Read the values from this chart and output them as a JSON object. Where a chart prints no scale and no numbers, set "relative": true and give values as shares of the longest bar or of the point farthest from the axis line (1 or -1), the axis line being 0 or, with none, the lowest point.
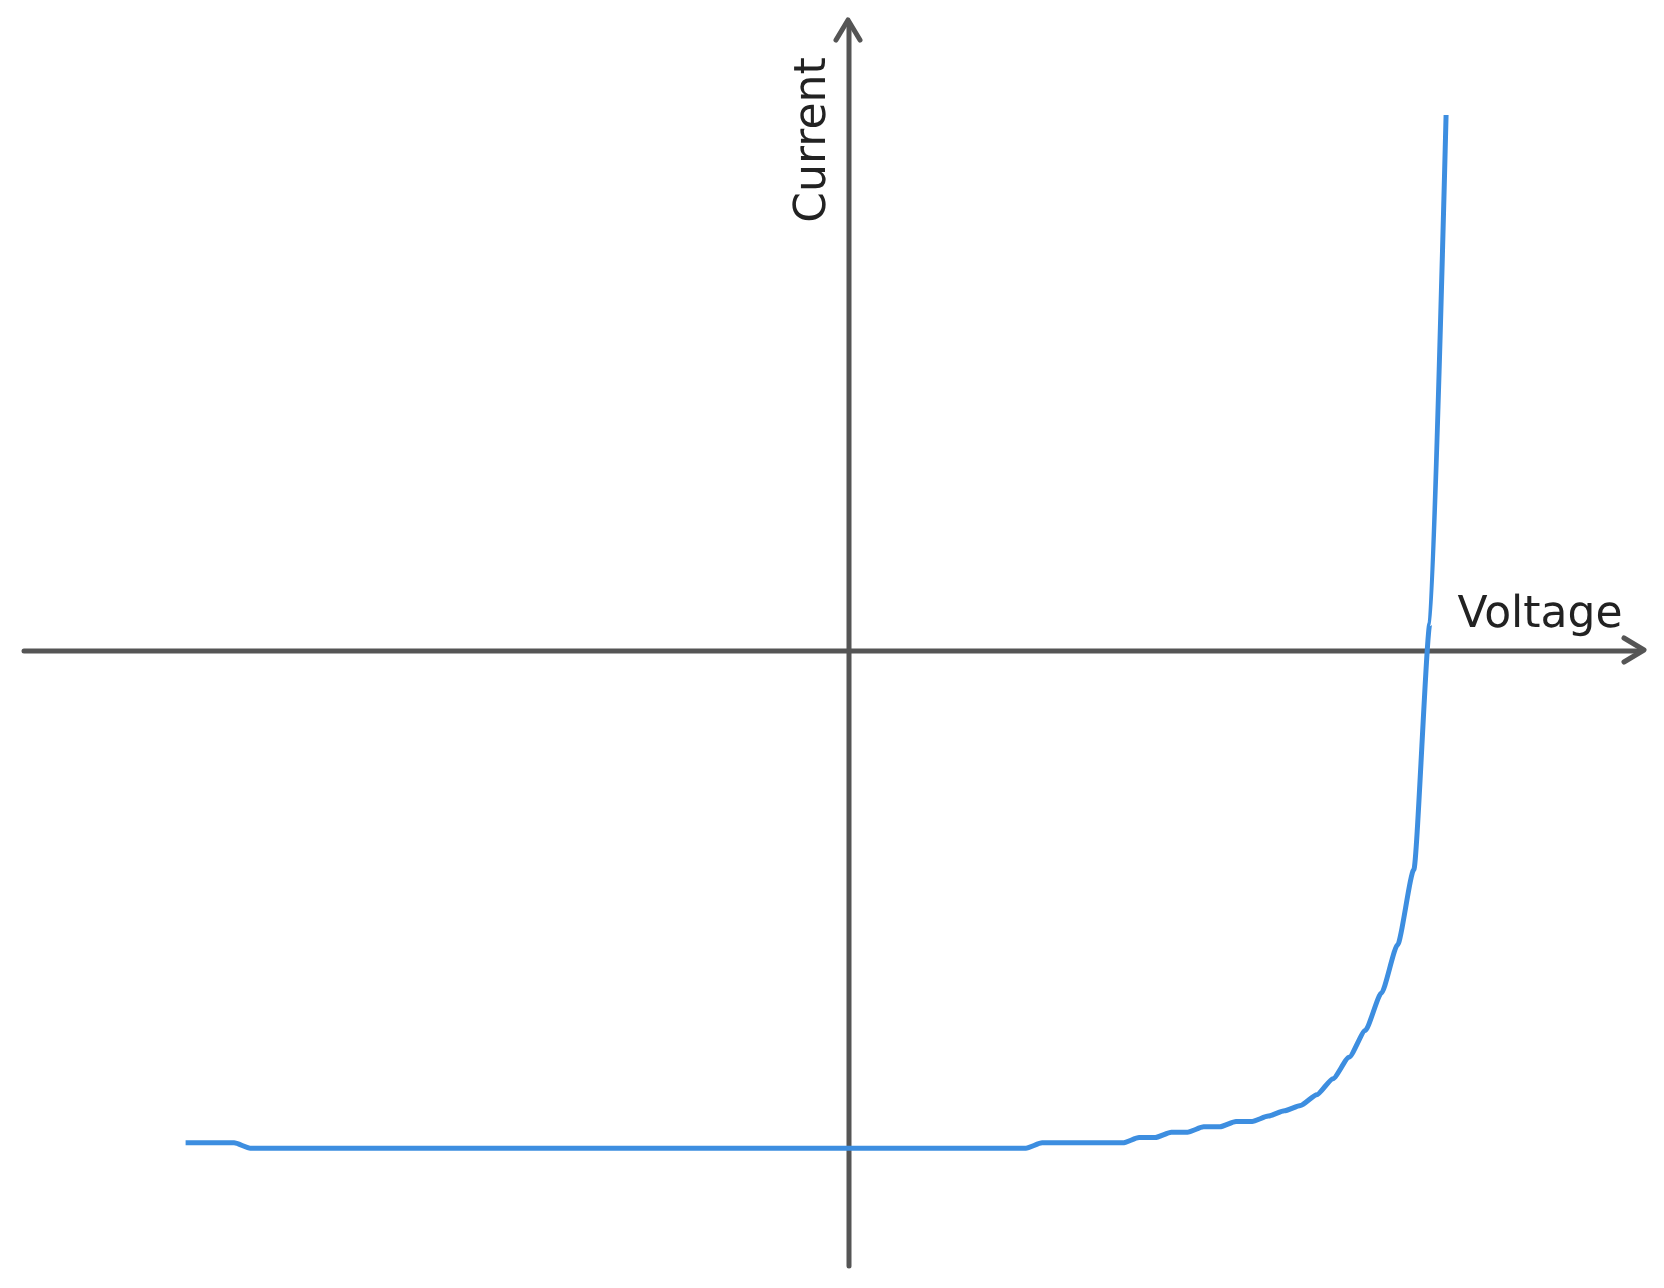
{
  "chart_data": {
    "type": "line",
    "xlabel": "Voltage",
    "ylabel": "Current",
    "relative": true,
    "categories": [
      null,
      null,
      null,
      null,
      null,
      null,
      null,
      null,
      null,
      null,
      null,
      null,
      null,
      null,
      null,
      null,
      null,
      null,
      null,
      null,
      null,
      null,
      null,
      null,
      null,
      null,
      null,
      null,
      null,
      null,
      null,
      null,
      null,
      null,
      null,
      null,
      null,
      null,
      null,
      null,
      null,
      null,
      null,
      null,
      null,
      null,
      null,
      null,
      null,
      null,
      null,
      null,
      null,
      null,
      null,
      null,
      null,
      null,
      null,
      null,
      null,
      null,
      null,
      null,
      null,
      null,
      null,
      null,
      null,
      null,
      null,
      null,
      null,
      null,
      null,
      null,
      null,
      null,
      null,
      null,
      null,
      null,
      null,
      null,
      null,
      null,
      null,
      null,
      null,
      null,
      null,
      null,
      null,
      null,
      null,
      null,
      null,
      null,
      null,
      null,
      null
    ],
    "series": [
      {
        "color": "#3d8ee0",
        "values": [
          null,
          null,
          null,
          null,
          null,
          null,
          null,
          null,
          null,
          null,
          -0.92,
          -0.92,
          -0.92,
          -0.92,
          -0.93,
          -0.93,
          -0.93,
          -0.93,
          -0.93,
          -0.93,
          -0.93,
          -0.93,
          -0.93,
          -0.93,
          -0.93,
          -0.93,
          -0.93,
          -0.93,
          -0.93,
          -0.93,
          -0.93,
          -0.93,
          -0.93,
          -0.93,
          -0.93,
          -0.93,
          -0.93,
          -0.93,
          -0.93,
          -0.93,
          -0.93,
          -0.93,
          -0.93,
          -0.93,
          -0.93,
          -0.93,
          -0.93,
          -0.93,
          -0.93,
          -0.93,
          -0.93,
          -0.93,
          -0.93,
          -0.93,
          -0.93,
          -0.93,
          -0.93,
          -0.93,
          -0.93,
          -0.93,
          -0.93,
          -0.93,
          -0.93,
          -0.92,
          -0.92,
          -0.92,
          -0.92,
          -0.92,
          -0.92,
          -0.91,
          -0.91,
          -0.9,
          -0.9,
          -0.89,
          -0.89,
          -0.88,
          -0.88,
          -0.87,
          -0.86,
          -0.85,
          -0.83,
          -0.8,
          -0.76,
          -0.71,
          -0.64,
          -0.55,
          -0.41,
          0.05,
          1,
          null,
          null,
          null,
          null,
          null,
          null,
          null,
          null,
          null,
          null,
          null,
          null
        ]
      }
    ]
  }
}
